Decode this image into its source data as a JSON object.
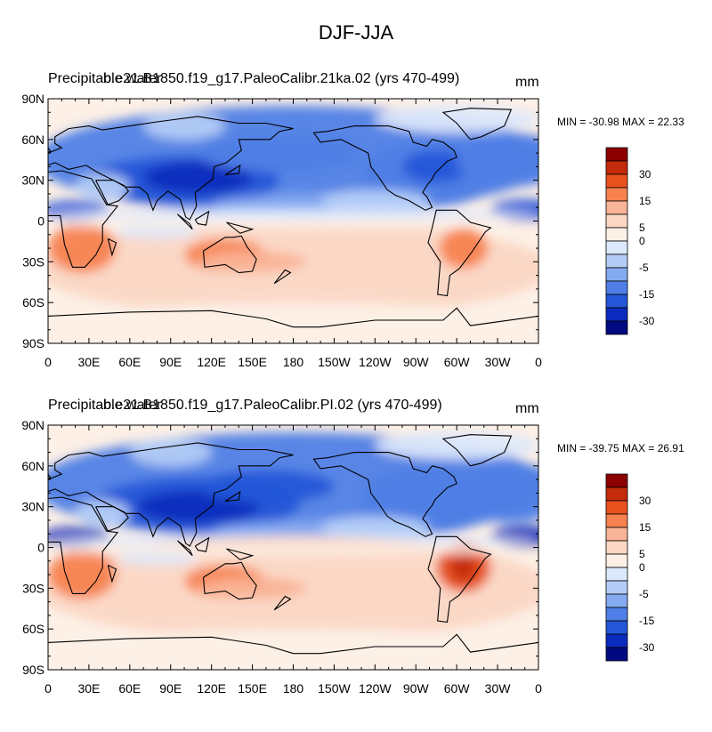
{
  "title": "DJF-JJA",
  "colorbar": {
    "labels": [
      "30",
      "15",
      "5",
      "0",
      "-5",
      "-15",
      "-30"
    ],
    "colors": [
      "#8c0000",
      "#c42b0b",
      "#e8521e",
      "#f7824f",
      "#f9b397",
      "#fbd7c4",
      "#fdf0e6",
      "#dce8fb",
      "#b4cdf7",
      "#84aaf0",
      "#4f7fe6",
      "#2457d8",
      "#0a2bbd",
      "#000a80"
    ]
  },
  "map": {
    "lat_labels": [
      "90N",
      "60N",
      "30N",
      "0",
      "30S",
      "60S",
      "90S"
    ],
    "lon_labels": [
      "0",
      "30E",
      "60E",
      "90E",
      "120E",
      "150E",
      "180",
      "150W",
      "120W",
      "90W",
      "60W",
      "30W",
      "0"
    ]
  },
  "panels": [
    {
      "variable": "Precipitable water",
      "case": "b.e21.B1850.f19_g17.PaleoCalibr.21ka.02 (yrs 470-499)",
      "units": "mm",
      "min_label": "MIN = -30.98",
      "max_label": "MAX =  22.33",
      "min": -30.98,
      "max": 22.33
    },
    {
      "variable": "Precipitable water",
      "case": "b.e21.B1850.f19_g17.PaleoCalibr.PI.02 (yrs 470-499)",
      "units": "mm",
      "min_label": "MIN = -39.75",
      "max_label": "MAX =  26.91",
      "min": -39.75,
      "max": 26.91
    }
  ]
}
